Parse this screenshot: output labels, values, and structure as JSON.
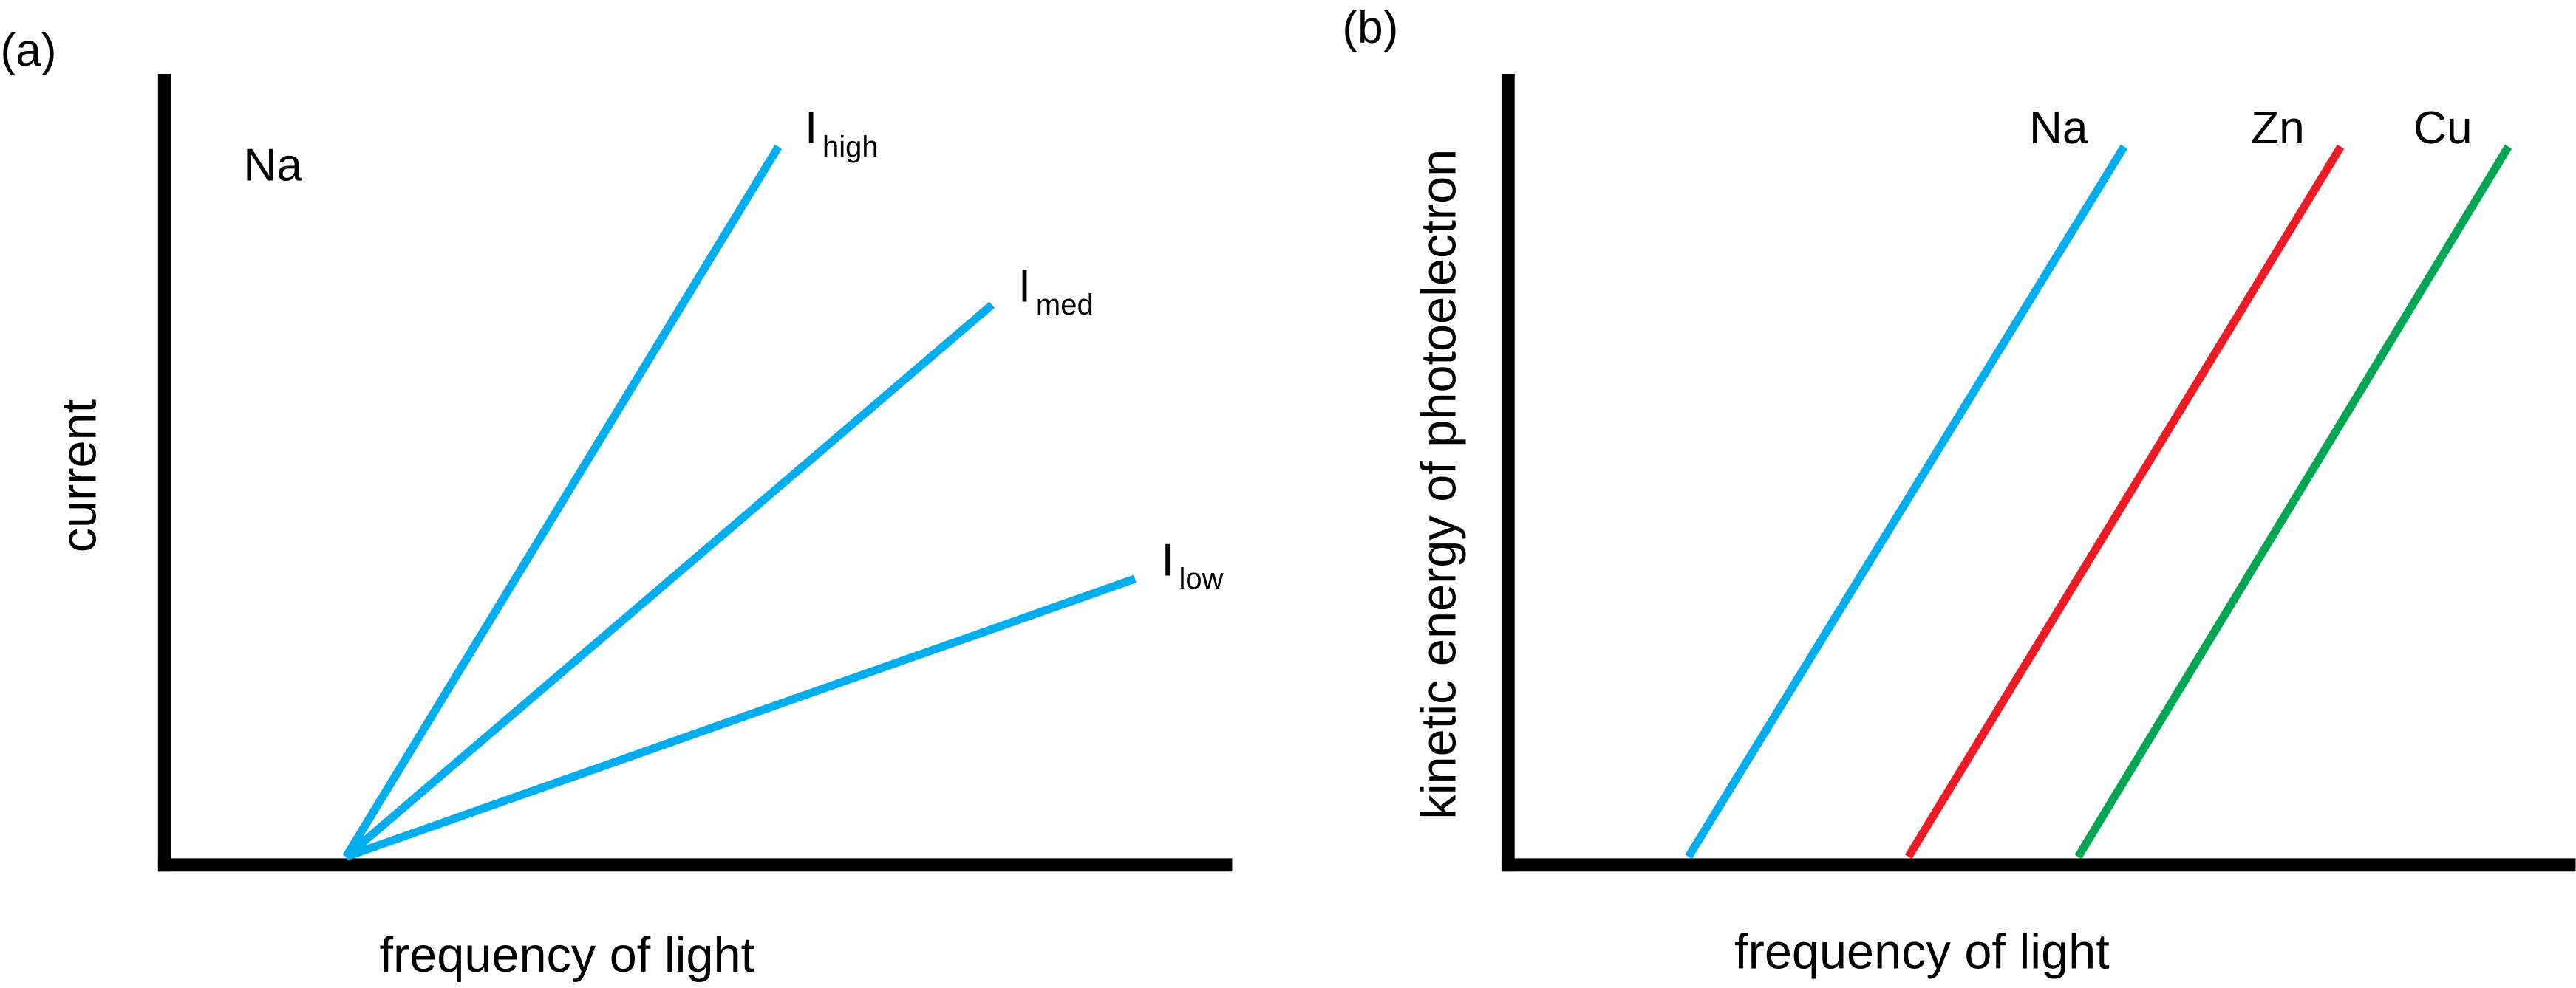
{
  "chart_data": [
    {
      "type": "line",
      "panel_label": "(a)",
      "title": "",
      "annotation": "Na",
      "xlabel": "frequency of light",
      "ylabel": "current",
      "xlim": [
        0,
        100
      ],
      "ylim": [
        0,
        100
      ],
      "grid": false,
      "series": [
        {
          "name": "I",
          "sub": "high",
          "color": "#00aeef",
          "x": [
            17,
            57.5
          ],
          "y": [
            0,
            90.7
          ]
        },
        {
          "name": "I",
          "sub": "med",
          "color": "#00aeef",
          "x": [
            17,
            77.5
          ],
          "y": [
            0,
            70.5
          ]
        },
        {
          "name": "I",
          "sub": "low",
          "color": "#00aeef",
          "x": [
            17,
            90.9
          ],
          "y": [
            0,
            35.5
          ]
        }
      ]
    },
    {
      "type": "line",
      "panel_label": "(b)",
      "title": "",
      "xlabel": "frequency of light",
      "ylabel": "kinetic energy of photoelectron",
      "xlim": [
        0,
        100
      ],
      "ylim": [
        0,
        100
      ],
      "grid": false,
      "series": [
        {
          "name": "Na",
          "sub": "",
          "color": "#00aeef",
          "x": [
            16.9,
            57.7
          ],
          "y": [
            0,
            90.7
          ]
        },
        {
          "name": "Zn",
          "sub": "",
          "color": "#ed1c24",
          "x": [
            37.5,
            78
          ],
          "y": [
            0,
            90.7
          ]
        },
        {
          "name": "Cu",
          "sub": "",
          "color": "#00a651",
          "x": [
            53.4,
            93.7
          ],
          "y": [
            0,
            90.7
          ]
        }
      ]
    }
  ]
}
